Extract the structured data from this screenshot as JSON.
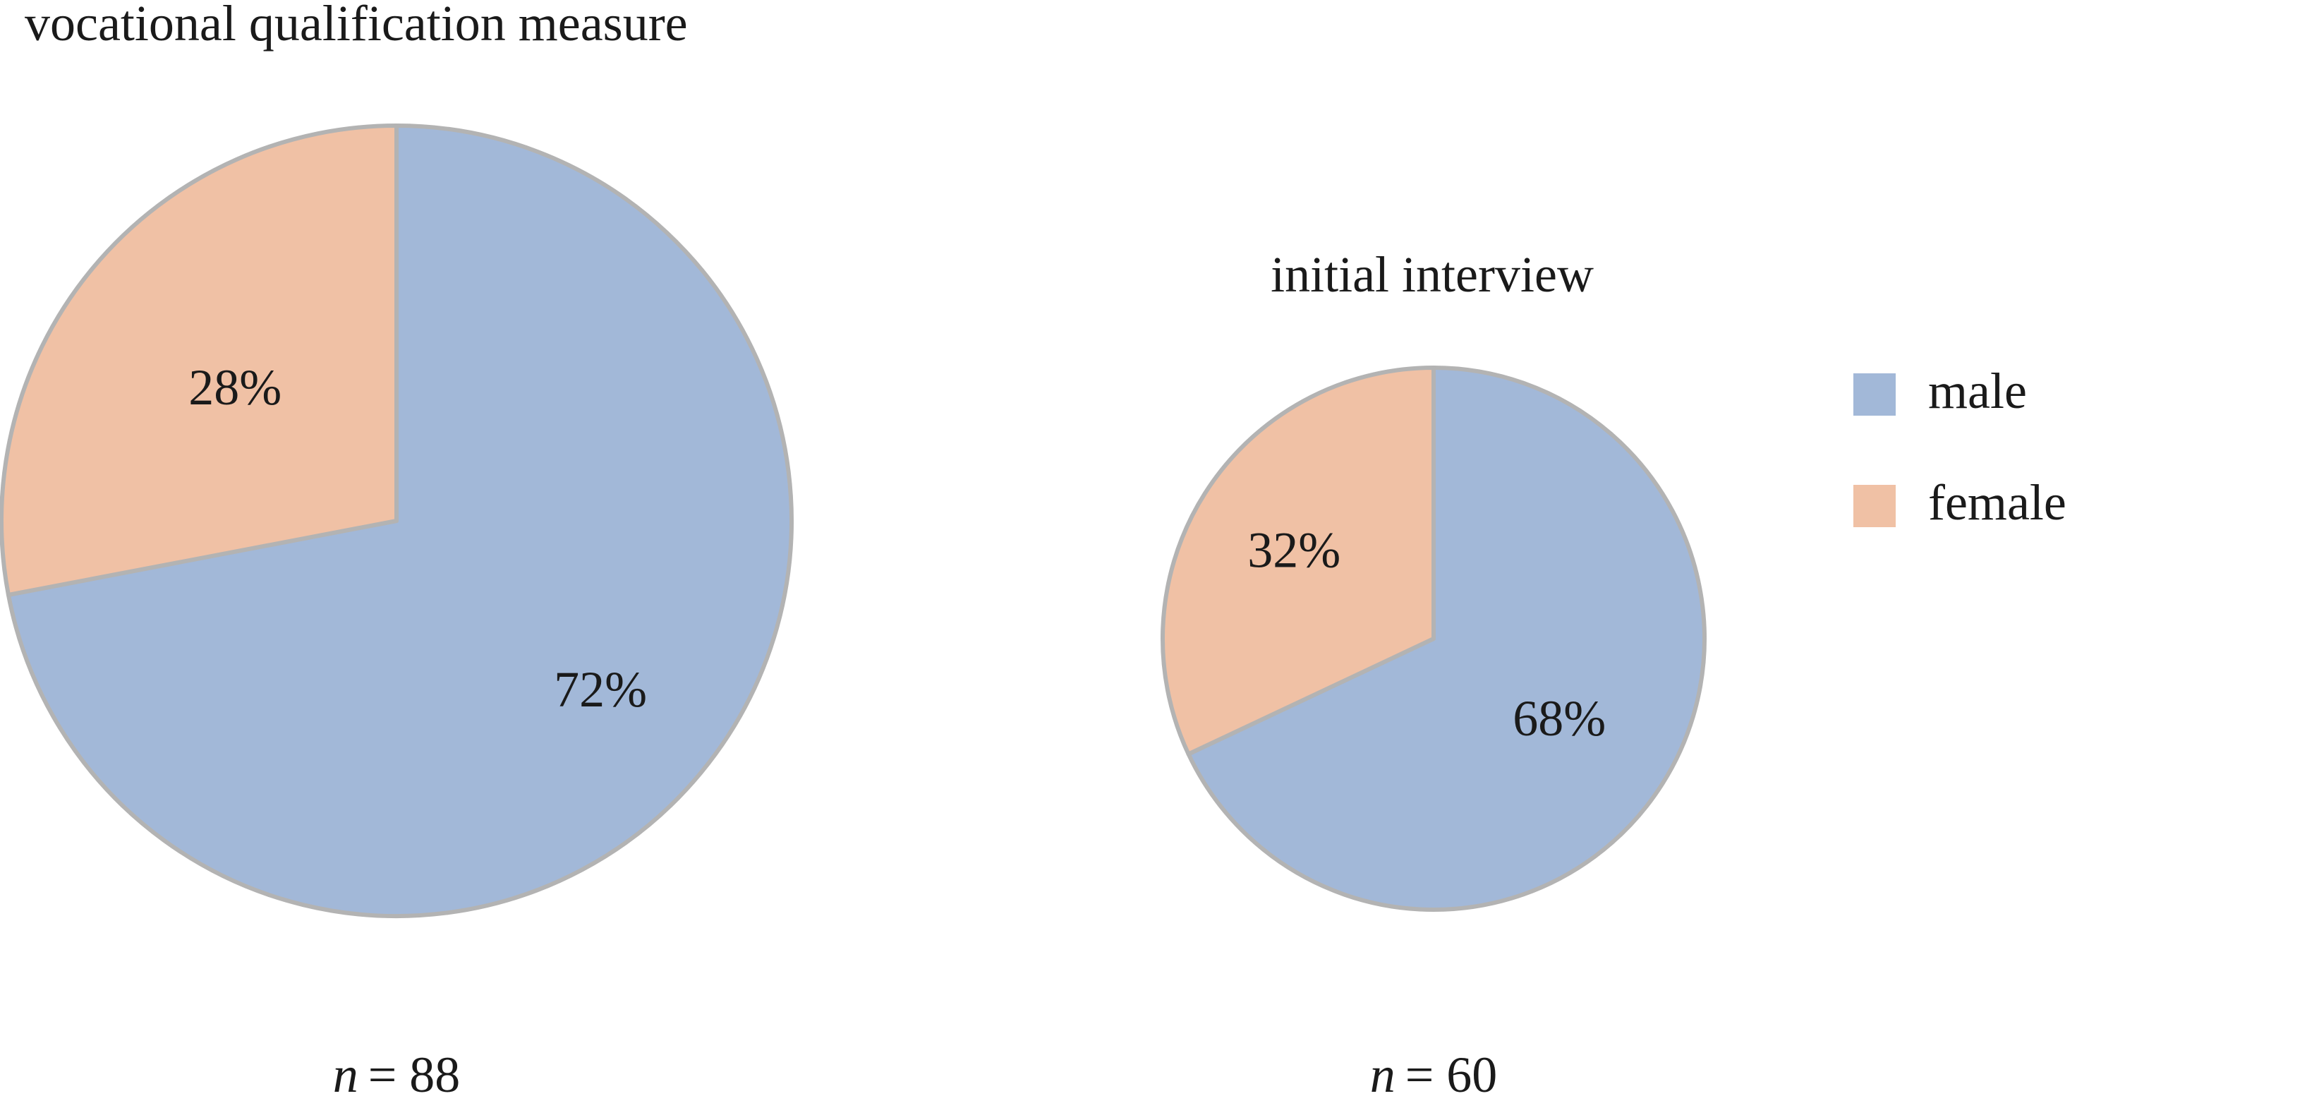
{
  "chart_data": [
    {
      "type": "pie",
      "title": "vocational qualification measure",
      "categories": [
        "male",
        "female"
      ],
      "values": [
        72,
        28
      ],
      "value_labels": [
        "72%",
        "28%"
      ],
      "n_label": "n = 88",
      "n_prefix": "n",
      "n_value": "= 88"
    },
    {
      "type": "pie",
      "title": "initial interview",
      "categories": [
        "male",
        "female"
      ],
      "values": [
        68,
        32
      ],
      "value_labels": [
        "68%",
        "32%"
      ],
      "n_label": "n = 60",
      "n_prefix": "n",
      "n_value": "= 60"
    }
  ],
  "legend": {
    "placement": "right",
    "items": [
      {
        "label": "male",
        "color": "#a2b8d8"
      },
      {
        "label": "female",
        "color": "#f0c1a5"
      }
    ]
  },
  "colors": {
    "male": "#a2b8d8",
    "female": "#f0c1a5",
    "slice_border": "#b3b3b3"
  }
}
